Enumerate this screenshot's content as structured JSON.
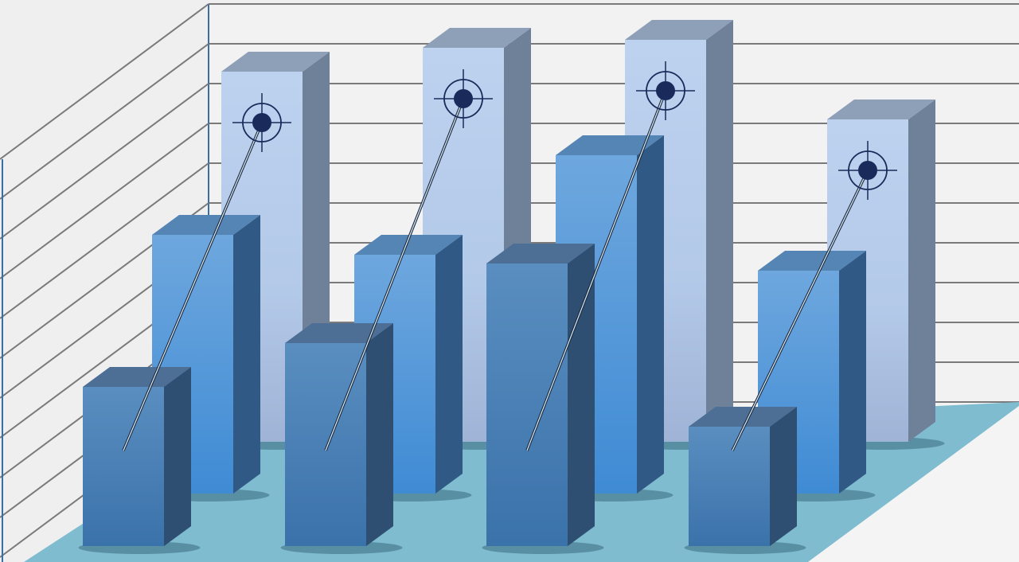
{
  "chart_data": {
    "type": "bar",
    "style": "3d-clustered",
    "title": "",
    "xlabel": "",
    "ylabel": "",
    "grid": true,
    "categories": [
      "",
      "",
      "",
      ""
    ],
    "series": [
      {
        "row": "back",
        "color": "#b4cbe9",
        "values": [
          9.3,
          9.9,
          10.1,
          8.1
        ],
        "marker": "target"
      },
      {
        "row": "middle",
        "color": "#4f93d6",
        "values": [
          6.5,
          6.0,
          8.5,
          5.6
        ]
      },
      {
        "row": "front",
        "color": "#4a7fb4",
        "values": [
          4.0,
          5.1,
          7.1,
          3.0
        ]
      }
    ],
    "ylim": [
      0,
      11
    ]
  },
  "colors": {
    "background": "#efefef",
    "wall_lines": "#7a7a7a",
    "wall_edge": "#3a6ea5",
    "floor": "#7fbcd0",
    "target": "#1a2a5a"
  }
}
